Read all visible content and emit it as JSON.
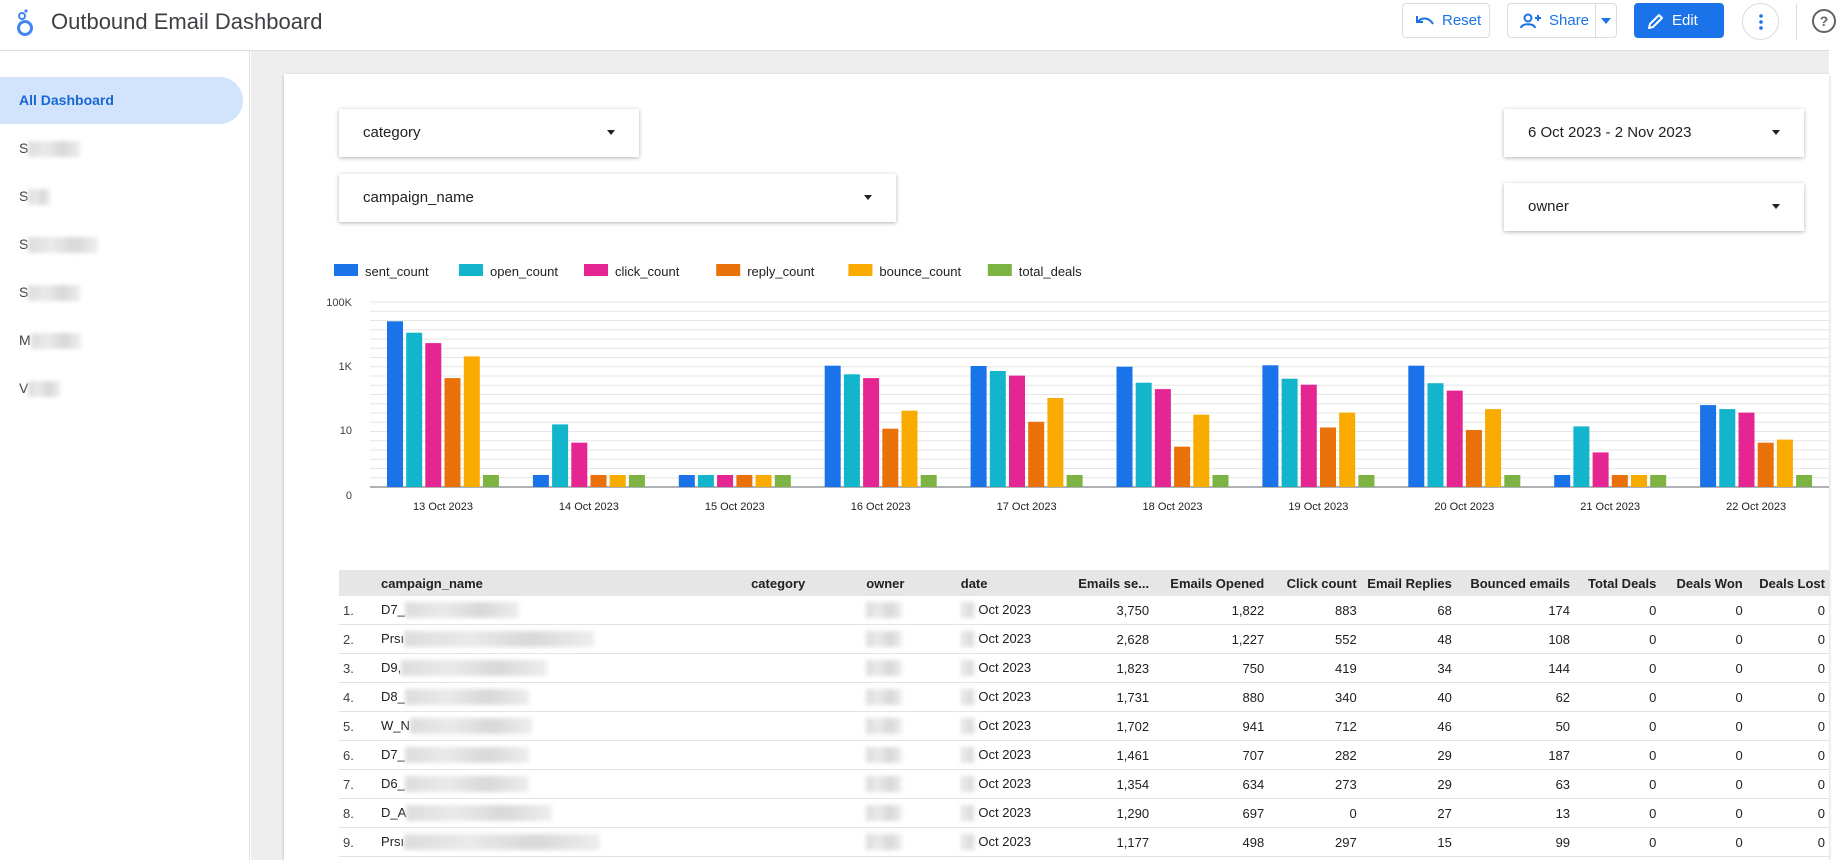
{
  "header": {
    "title": "Outbound Email Dashboard",
    "reset_label": "Reset",
    "share_label": "Share",
    "edit_label": "Edit"
  },
  "sidebar": {
    "items": [
      {
        "label": "All Dashboard",
        "active": true
      },
      {
        "label": "S",
        "redacted": true
      },
      {
        "label": "S",
        "redacted": true
      },
      {
        "label": "S",
        "redacted": true
      },
      {
        "label": "S",
        "redacted": true
      },
      {
        "label": "M",
        "redacted": true
      },
      {
        "label": "V",
        "redacted": true
      }
    ]
  },
  "filters": {
    "category": "category",
    "campaign_name": "campaign_name",
    "date_range": "6 Oct 2023 - 2 Nov 2023",
    "owner": "owner"
  },
  "colors": {
    "accent": "#1a73e8",
    "sent_count": "#1a73e8",
    "open_count": "#12b5cb",
    "click_count": "#e52592",
    "reply_count": "#e8710a",
    "bounce_count": "#f9ab00",
    "total_deals": "#7cb342"
  },
  "chart_data": {
    "type": "bar",
    "y_scale": "log",
    "ylabels": [
      "100K",
      "1K",
      "10",
      "0"
    ],
    "categories": [
      "13 Oct 2023",
      "14 Oct 2023",
      "15 Oct 2023",
      "16 Oct 2023",
      "17 Oct 2023",
      "18 Oct 2023",
      "19 Oct 2023",
      "20 Oct 2023",
      "21 Oct 2023",
      "22 Oct 2023"
    ],
    "legend_position": "top-left",
    "series": [
      {
        "name": "sent_count",
        "values": [
          25000,
          0,
          0,
          1020,
          1000,
          950,
          1050,
          1020,
          0,
          60
        ]
      },
      {
        "name": "open_count",
        "values": [
          11000,
          15,
          0,
          550,
          700,
          300,
          400,
          290,
          13,
          45
        ]
      },
      {
        "name": "click_count",
        "values": [
          5200,
          4,
          0,
          420,
          500,
          190,
          260,
          170,
          2,
          35
        ]
      },
      {
        "name": "reply_count",
        "values": [
          420,
          0,
          0,
          11,
          18,
          3,
          12,
          10,
          0,
          4
        ]
      },
      {
        "name": "bounce_count",
        "values": [
          2000,
          0,
          0,
          40,
          100,
          30,
          35,
          45,
          0,
          5
        ]
      },
      {
        "name": "total_deals",
        "values": [
          0,
          0,
          0,
          0,
          0,
          0,
          0,
          0,
          0,
          0
        ]
      }
    ]
  },
  "table": {
    "columns": [
      "campaign_name",
      "category",
      "owner",
      "date",
      "Emails se...",
      "Emails Opened",
      "Click count",
      "Email Replies",
      "Bounced emails",
      "Total Deals",
      "Deals Won",
      "Deals Lost"
    ],
    "rows": [
      {
        "idx": "1.",
        "campaign": "D7_",
        "date": "Oct 2023",
        "sent": "3,750",
        "opened": "1,822",
        "click": "883",
        "replies": "68",
        "bounced": "174",
        "total": "0",
        "won": "0",
        "lost": "0"
      },
      {
        "idx": "2.",
        "campaign": "Prsı",
        "date": "Oct 2023",
        "sent": "2,628",
        "opened": "1,227",
        "click": "552",
        "replies": "48",
        "bounced": "108",
        "total": "0",
        "won": "0",
        "lost": "0"
      },
      {
        "idx": "3.",
        "campaign": "D9,",
        "date": "Oct 2023",
        "sent": "1,823",
        "opened": "750",
        "click": "419",
        "replies": "34",
        "bounced": "144",
        "total": "0",
        "won": "0",
        "lost": "0"
      },
      {
        "idx": "4.",
        "campaign": "D8_",
        "date": "Oct 2023",
        "sent": "1,731",
        "opened": "880",
        "click": "340",
        "replies": "40",
        "bounced": "62",
        "total": "0",
        "won": "0",
        "lost": "0"
      },
      {
        "idx": "5.",
        "campaign": "W_N",
        "date": "Oct 2023",
        "sent": "1,702",
        "opened": "941",
        "click": "712",
        "replies": "46",
        "bounced": "50",
        "total": "0",
        "won": "0",
        "lost": "0"
      },
      {
        "idx": "6.",
        "campaign": "D7_",
        "date": "Oct 2023",
        "sent": "1,461",
        "opened": "707",
        "click": "282",
        "replies": "29",
        "bounced": "187",
        "total": "0",
        "won": "0",
        "lost": "0"
      },
      {
        "idx": "7.",
        "campaign": "D6_",
        "date": "Oct 2023",
        "sent": "1,354",
        "opened": "634",
        "click": "273",
        "replies": "29",
        "bounced": "63",
        "total": "0",
        "won": "0",
        "lost": "0"
      },
      {
        "idx": "8.",
        "campaign": "D_A",
        "date": "Oct 2023",
        "sent": "1,290",
        "opened": "697",
        "click": "0",
        "replies": "27",
        "bounced": "13",
        "total": "0",
        "won": "0",
        "lost": "0"
      },
      {
        "idx": "9.",
        "campaign": "Prsı",
        "date": "Oct 2023",
        "sent": "1,177",
        "opened": "498",
        "click": "297",
        "replies": "15",
        "bounced": "99",
        "total": "0",
        "won": "0",
        "lost": "0"
      }
    ]
  }
}
